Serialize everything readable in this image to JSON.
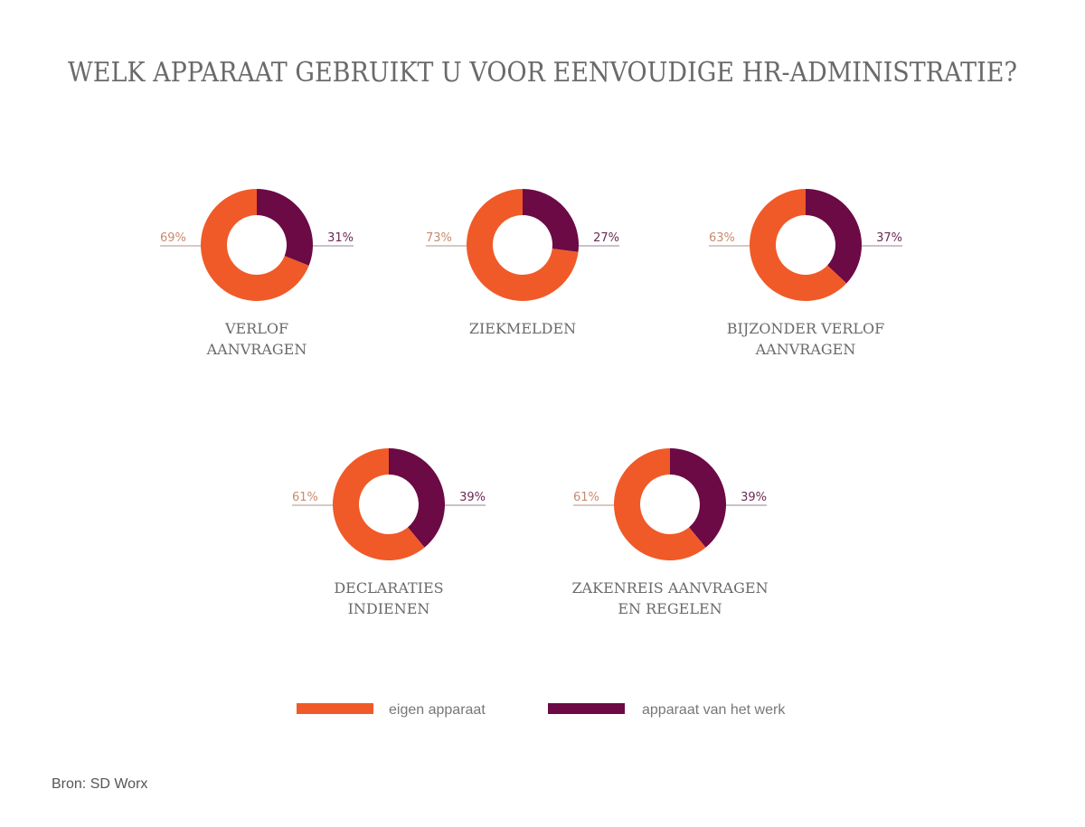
{
  "chart_data": {
    "type": "pie",
    "subtype": "donut",
    "title": "WELK APPARAAT GEBRUIKT U VOOR EENVOUDIGE HR-ADMINISTRATIE?",
    "series": [
      {
        "name": "eigen apparaat",
        "color": "#f05a28"
      },
      {
        "name": "apparaat van het werk",
        "color": "#6b0a45"
      }
    ],
    "charts": [
      {
        "label_lines": [
          "VERLOF",
          "AANVRAGEN"
        ],
        "values": [
          69,
          31
        ],
        "labels": [
          "69%",
          "31%"
        ]
      },
      {
        "label_lines": [
          "ZIEKMELDEN"
        ],
        "values": [
          73,
          27
        ],
        "labels": [
          "73%",
          "27%"
        ]
      },
      {
        "label_lines": [
          "BIJZONDER VERLOF",
          "AANVRAGEN"
        ],
        "values": [
          63,
          37
        ],
        "labels": [
          "63%",
          "37%"
        ]
      },
      {
        "label_lines": [
          "DECLARATIES",
          "INDIENEN"
        ],
        "values": [
          61,
          39
        ],
        "labels": [
          "61%",
          "39%"
        ]
      },
      {
        "label_lines": [
          "ZAKENREIS AANVRAGEN",
          "EN REGELEN"
        ],
        "values": [
          61,
          39
        ],
        "labels": [
          "61%",
          "39%"
        ]
      }
    ],
    "legend_position": "bottom",
    "source": "Bron: SD Worx"
  }
}
